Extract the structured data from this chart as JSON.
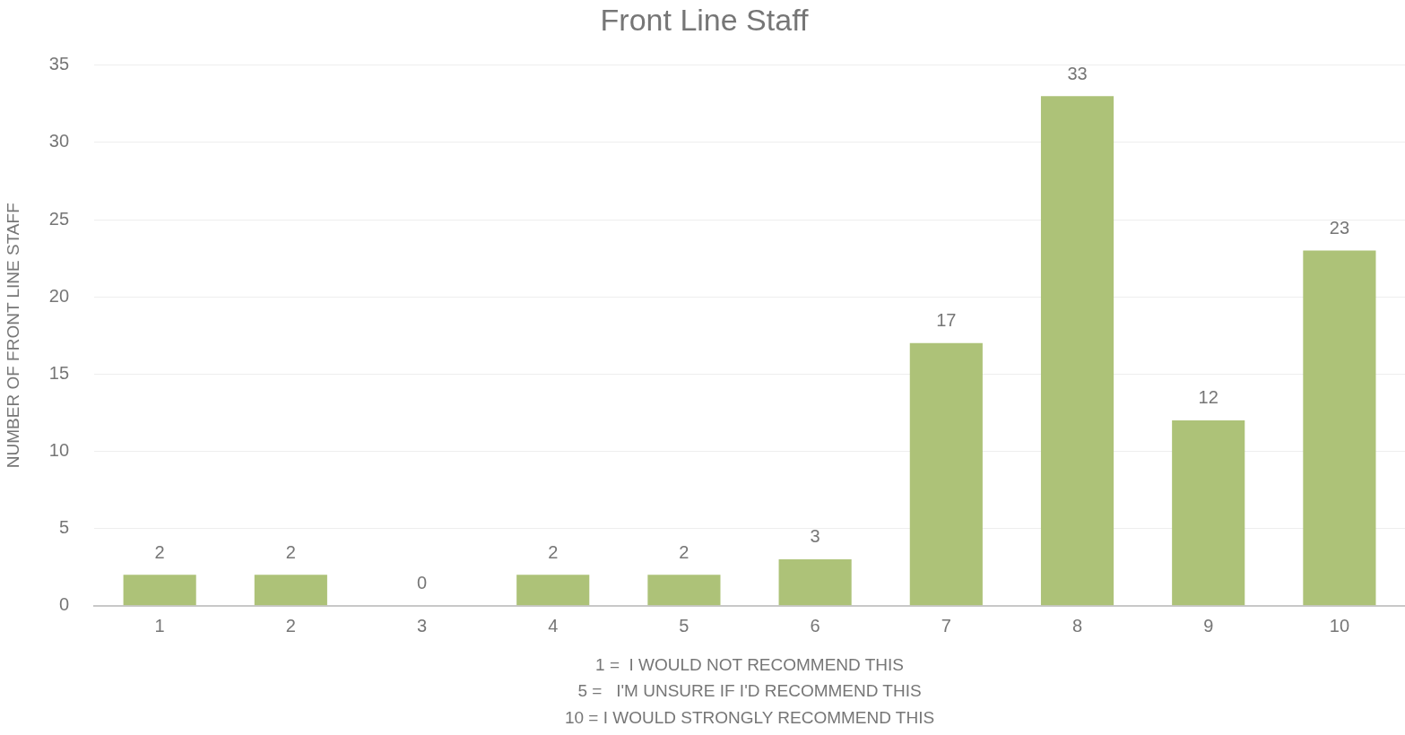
{
  "chart_data": {
    "type": "bar",
    "title": "Front Line Staff",
    "xlabel": "1 =  I WOULD NOT RECOMMEND THIS\n5 =   I'M UNSURE IF I'D RECOMMEND THIS\n10 = I WOULD STRONGLY RECOMMEND THIS",
    "ylabel": "NUMBER OF FRONT LINE STAFF",
    "categories": [
      "1",
      "2",
      "3",
      "4",
      "5",
      "6",
      "7",
      "8",
      "9",
      "10"
    ],
    "values": [
      2,
      2,
      0,
      2,
      2,
      3,
      17,
      33,
      12,
      23
    ],
    "color": "#adc278",
    "ylim": [
      0,
      35
    ],
    "yticks": [
      0,
      5,
      10,
      15,
      20,
      25,
      30,
      35
    ],
    "grid": "y",
    "data_labels": true
  }
}
